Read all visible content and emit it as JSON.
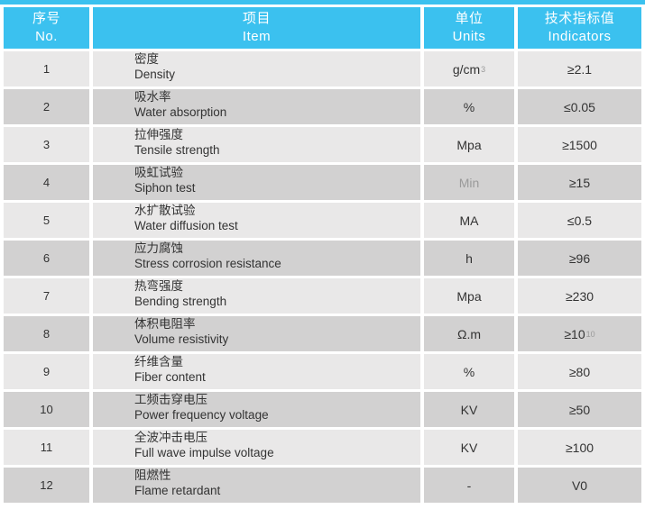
{
  "colors": {
    "accent": "#3bc1ef",
    "row_light": "#e9e8e8",
    "row_dark": "#d2d1d1",
    "text": "#333333",
    "muted_text": "#9a9a9a",
    "header_text": "#ffffff",
    "background": "#ffffff"
  },
  "header": {
    "columns": [
      {
        "zh": "序号",
        "en": "No."
      },
      {
        "zh": "项目",
        "en": "Item"
      },
      {
        "zh": "单位",
        "en": "Units"
      },
      {
        "zh": "技术指标值",
        "en": "Indicators"
      }
    ]
  },
  "rows": [
    {
      "no": "1",
      "item_zh": "密度",
      "item_en": "Density",
      "unit": "g/cm",
      "unit_sup": "3",
      "unit_muted": false,
      "indicator": "≥2.1",
      "indicator_sup": ""
    },
    {
      "no": "2",
      "item_zh": "吸水率",
      "item_en": "Water absorption",
      "unit": "%",
      "unit_sup": "",
      "unit_muted": false,
      "indicator": "≤0.05",
      "indicator_sup": ""
    },
    {
      "no": "3",
      "item_zh": "拉伸强度",
      "item_en": "Tensile strength",
      "unit": "Mpa",
      "unit_sup": "",
      "unit_muted": false,
      "indicator": "≥1500",
      "indicator_sup": ""
    },
    {
      "no": "4",
      "item_zh": "吸虹试验",
      "item_en": "Siphon test",
      "unit": "Min",
      "unit_sup": "",
      "unit_muted": true,
      "indicator": "≥15",
      "indicator_sup": ""
    },
    {
      "no": "5",
      "item_zh": "水扩散试验",
      "item_en": "Water diffusion test",
      "unit": "MA",
      "unit_sup": "",
      "unit_muted": false,
      "indicator": "≤0.5",
      "indicator_sup": ""
    },
    {
      "no": "6",
      "item_zh": "应力腐蚀",
      "item_en": "Stress corrosion resistance",
      "unit": "h",
      "unit_sup": "",
      "unit_muted": false,
      "indicator": "≥96",
      "indicator_sup": ""
    },
    {
      "no": "7",
      "item_zh": "热弯强度",
      "item_en": "Bending strength",
      "unit": "Mpa",
      "unit_sup": "",
      "unit_muted": false,
      "indicator": "≥230",
      "indicator_sup": ""
    },
    {
      "no": "8",
      "item_zh": "体积电阻率",
      "item_en": "Volume resistivity",
      "unit": "Ω.m",
      "unit_sup": "",
      "unit_muted": false,
      "indicator": "≥10",
      "indicator_sup": "10"
    },
    {
      "no": "9",
      "item_zh": "纤维含量",
      "item_en": "Fiber content",
      "unit": "%",
      "unit_sup": "",
      "unit_muted": false,
      "indicator": "≥80",
      "indicator_sup": ""
    },
    {
      "no": "10",
      "item_zh": "工频击穿电压",
      "item_en": "Power frequency voltage",
      "unit": "KV",
      "unit_sup": "",
      "unit_muted": false,
      "indicator": "≥50",
      "indicator_sup": ""
    },
    {
      "no": "11",
      "item_zh": "全波冲击电压",
      "item_en": "Full wave impulse voltage",
      "unit": "KV",
      "unit_sup": "",
      "unit_muted": false,
      "indicator": "≥100",
      "indicator_sup": ""
    },
    {
      "no": "12",
      "item_zh": "阻燃性",
      "item_en": "Flame retardant",
      "unit": "-",
      "unit_sup": "",
      "unit_muted": false,
      "indicator": "V0",
      "indicator_sup": ""
    }
  ]
}
